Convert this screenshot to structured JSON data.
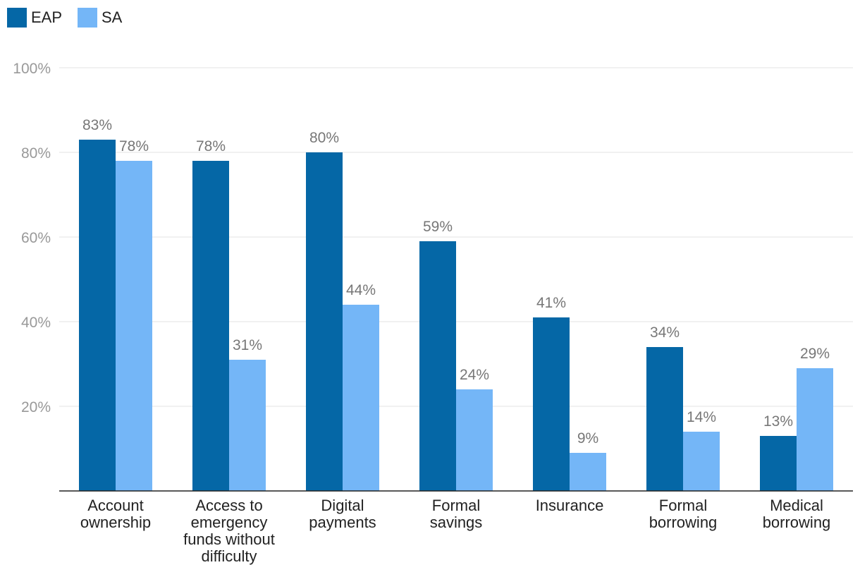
{
  "chart_data": {
    "type": "bar",
    "title": "",
    "xlabel": "",
    "ylabel": "",
    "ylim": [
      0,
      100
    ],
    "yticks": [
      20,
      40,
      60,
      80,
      100
    ],
    "ytick_labels": [
      "20%",
      "40%",
      "60%",
      "80%",
      "100%"
    ],
    "categories": [
      [
        "Account",
        "ownership"
      ],
      [
        "Access to",
        "emergency",
        "funds without",
        "difficulty"
      ],
      [
        "Digital",
        "payments"
      ],
      [
        "Formal",
        "savings"
      ],
      [
        "Insurance"
      ],
      [
        "Formal",
        "borrowing"
      ],
      [
        "Medical",
        "borrowing"
      ]
    ],
    "series": [
      {
        "name": "EAP",
        "color": "#0567a6",
        "values": [
          83,
          78,
          80,
          59,
          41,
          34,
          13
        ],
        "labels": [
          "83%",
          "78%",
          "80%",
          "59%",
          "41%",
          "34%",
          "13%"
        ]
      },
      {
        "name": "SA",
        "color": "#74b6f7",
        "values": [
          78,
          31,
          44,
          24,
          9,
          14,
          29
        ],
        "labels": [
          "78%",
          "31%",
          "44%",
          "24%",
          "9%",
          "14%",
          "29%"
        ]
      }
    ],
    "legend_position": "top-left",
    "grid": true
  }
}
